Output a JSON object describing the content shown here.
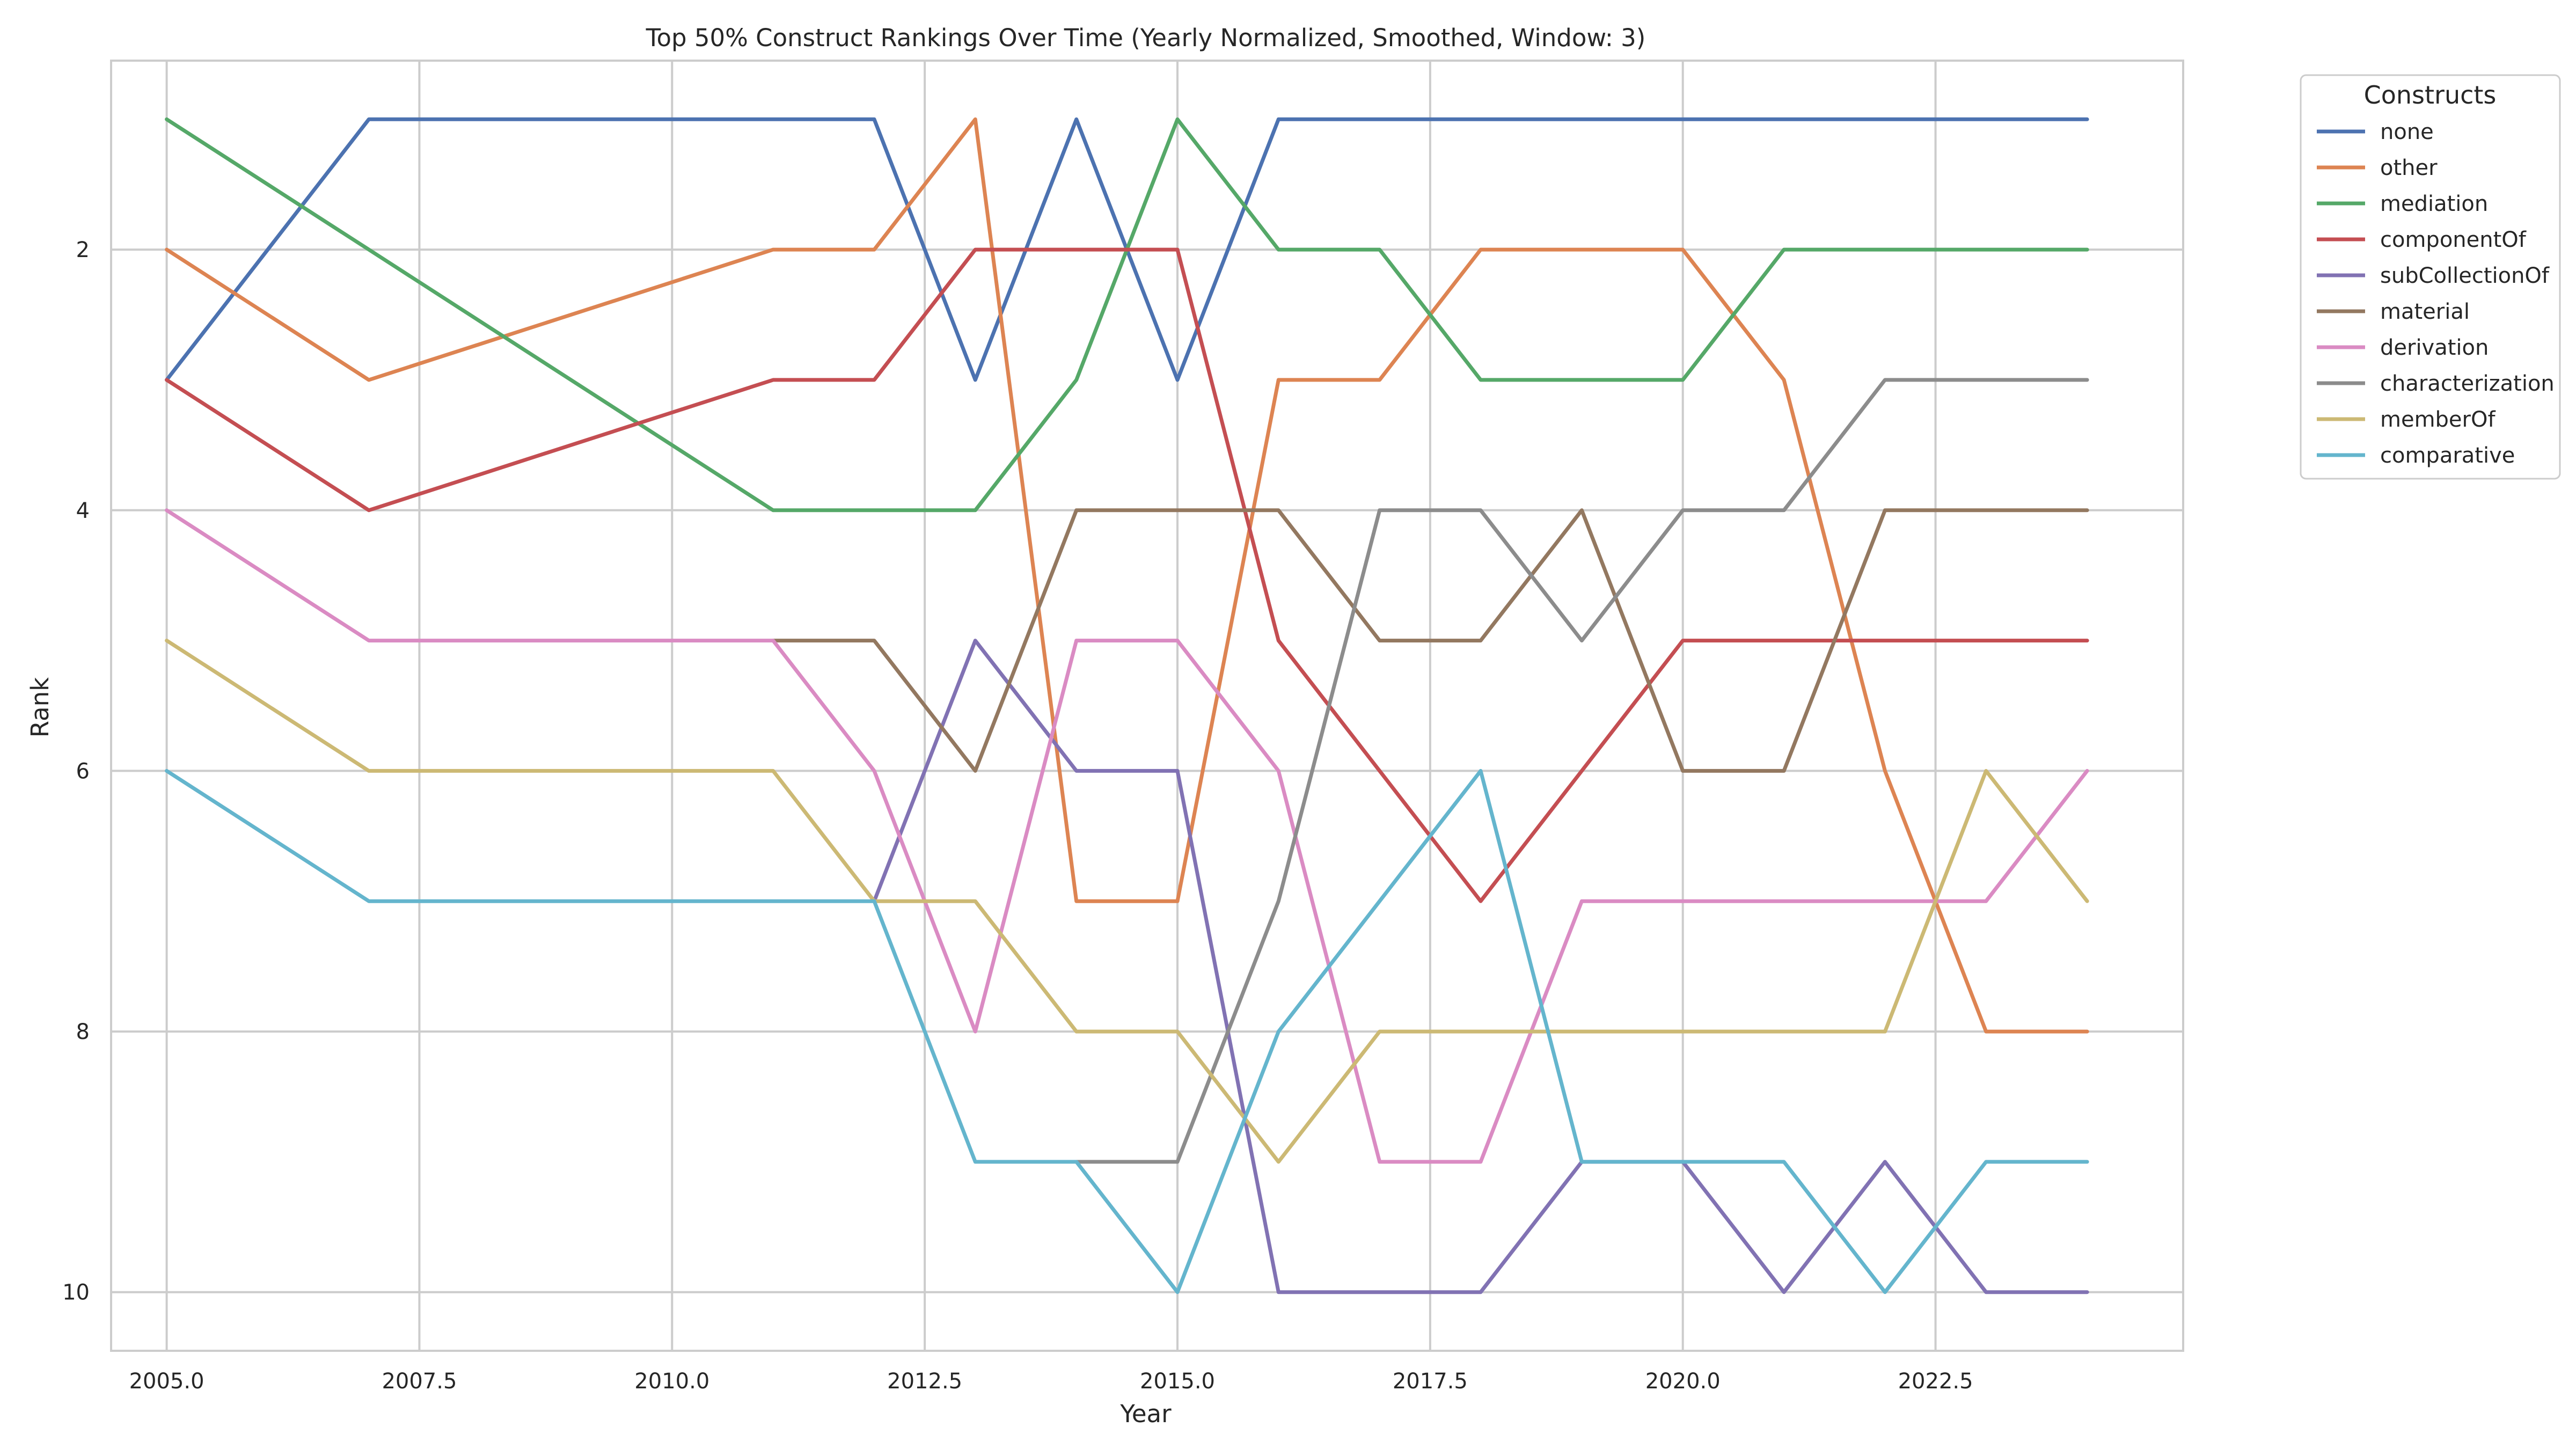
{
  "chart_data": {
    "type": "line",
    "title": "Top 50% Construct Rankings Over Time (Yearly Normalized, Smoothed, Window: 3)",
    "xlabel": "Year",
    "ylabel": "Rank",
    "xlim": [
      2004.45,
      2024.95
    ],
    "ylim": [
      0.55,
      10.45
    ],
    "y_inverted": true,
    "grid": true,
    "x_ticks": [
      2005.0,
      2007.5,
      2010.0,
      2012.5,
      2015.0,
      2017.5,
      2020.0,
      2022.5
    ],
    "x_tick_labels": [
      "2005.0",
      "2007.5",
      "2010.0",
      "2012.5",
      "2015.0",
      "2017.5",
      "2020.0",
      "2022.5"
    ],
    "y_ticks": [
      2,
      4,
      6,
      8,
      10
    ],
    "y_tick_labels": [
      "2",
      "4",
      "6",
      "8",
      "10"
    ],
    "legend": {
      "title": "Constructs",
      "placement": "outside right, top"
    },
    "x": [
      2005,
      2007,
      2011,
      2012,
      2013,
      2014,
      2015,
      2016,
      2017,
      2018,
      2019,
      2020,
      2021,
      2022,
      2023,
      2024
    ],
    "series": [
      {
        "name": "none",
        "color": "#4c72b0",
        "values": [
          3,
          1,
          1,
          1,
          3,
          1,
          3,
          1,
          1,
          1,
          1,
          1,
          1,
          1,
          1,
          1
        ]
      },
      {
        "name": "other",
        "color": "#dd8452",
        "values": [
          2,
          3,
          2,
          2,
          1,
          7,
          7,
          3,
          3,
          2,
          2,
          2,
          3,
          6,
          8,
          8
        ]
      },
      {
        "name": "mediation",
        "color": "#55a868",
        "values": [
          1,
          2,
          4,
          4,
          4,
          3,
          1,
          2,
          2,
          3,
          3,
          3,
          2,
          2,
          2,
          2
        ]
      },
      {
        "name": "componentOf",
        "color": "#c44e52",
        "values": [
          3,
          4,
          3,
          3,
          2,
          2,
          2,
          5,
          6,
          7,
          6,
          5,
          5,
          5,
          5,
          5
        ]
      },
      {
        "name": "subCollectionOf",
        "color": "#8172b3",
        "values": [
          null,
          null,
          null,
          7,
          5,
          6,
          6,
          10,
          10,
          10,
          9,
          9,
          10,
          9,
          10,
          10
        ]
      },
      {
        "name": "material",
        "color": "#937860",
        "values": [
          null,
          null,
          5,
          5,
          6,
          4,
          4,
          4,
          5,
          5,
          4,
          6,
          6,
          4,
          4,
          4
        ]
      },
      {
        "name": "derivation",
        "color": "#da8bc3",
        "values": [
          4,
          5,
          5,
          6,
          8,
          5,
          5,
          6,
          9,
          9,
          7,
          7,
          7,
          7,
          7,
          6
        ]
      },
      {
        "name": "characterization",
        "color": "#8c8c8c",
        "values": [
          null,
          null,
          null,
          null,
          null,
          9,
          9,
          7,
          4,
          4,
          5,
          4,
          4,
          3,
          3,
          3
        ]
      },
      {
        "name": "memberOf",
        "color": "#ccb974",
        "values": [
          5,
          6,
          6,
          7,
          7,
          8,
          8,
          9,
          8,
          8,
          8,
          8,
          8,
          8,
          6,
          7
        ]
      },
      {
        "name": "comparative",
        "color": "#64b5cd",
        "values": [
          6,
          7,
          7,
          7,
          9,
          9,
          10,
          8,
          7,
          6,
          9,
          9,
          9,
          10,
          9,
          9
        ]
      }
    ]
  }
}
